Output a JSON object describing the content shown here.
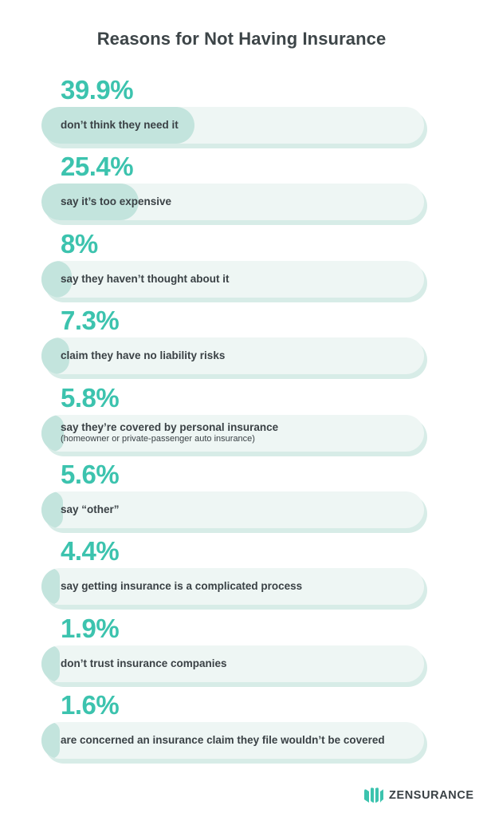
{
  "title": "Reasons for Not Having Insurance",
  "brand": {
    "name": "ZENSURANCE",
    "color": "#3cc3ae"
  },
  "colors": {
    "accent": "#3cc3ae",
    "fill": "#c3e4dd",
    "track": "#eef6f4",
    "shadow": "#d7ece7",
    "text": "#3a4145"
  },
  "chart_data": {
    "type": "bar",
    "title": "Reasons for Not Having Insurance",
    "orientation": "horizontal",
    "unit": "%",
    "items": [
      {
        "value_label": "39.9%",
        "value": 39.9,
        "label": "don’t think they need it",
        "sublabel": ""
      },
      {
        "value_label": "25.4%",
        "value": 25.4,
        "label": "say it’s too expensive",
        "sublabel": ""
      },
      {
        "value_label": "8%",
        "value": 8,
        "label": "say they haven’t thought about it",
        "sublabel": ""
      },
      {
        "value_label": "7.3%",
        "value": 7.3,
        "label": "claim they have no liability risks",
        "sublabel": ""
      },
      {
        "value_label": "5.8%",
        "value": 5.8,
        "label": "say they’re covered by personal insurance",
        "sublabel": "(homeowner or private-passenger auto insurance)"
      },
      {
        "value_label": "5.6%",
        "value": 5.6,
        "label": "say “other”",
        "sublabel": ""
      },
      {
        "value_label": "4.4%",
        "value": 4.4,
        "label": "say getting insurance is a complicated process",
        "sublabel": ""
      },
      {
        "value_label": "1.9%",
        "value": 1.9,
        "label": "don’t trust insurance companies",
        "sublabel": ""
      },
      {
        "value_label": "1.6%",
        "value": 1.6,
        "label": "are concerned an insurance claim they file wouldn’t be covered",
        "sublabel": ""
      }
    ]
  }
}
